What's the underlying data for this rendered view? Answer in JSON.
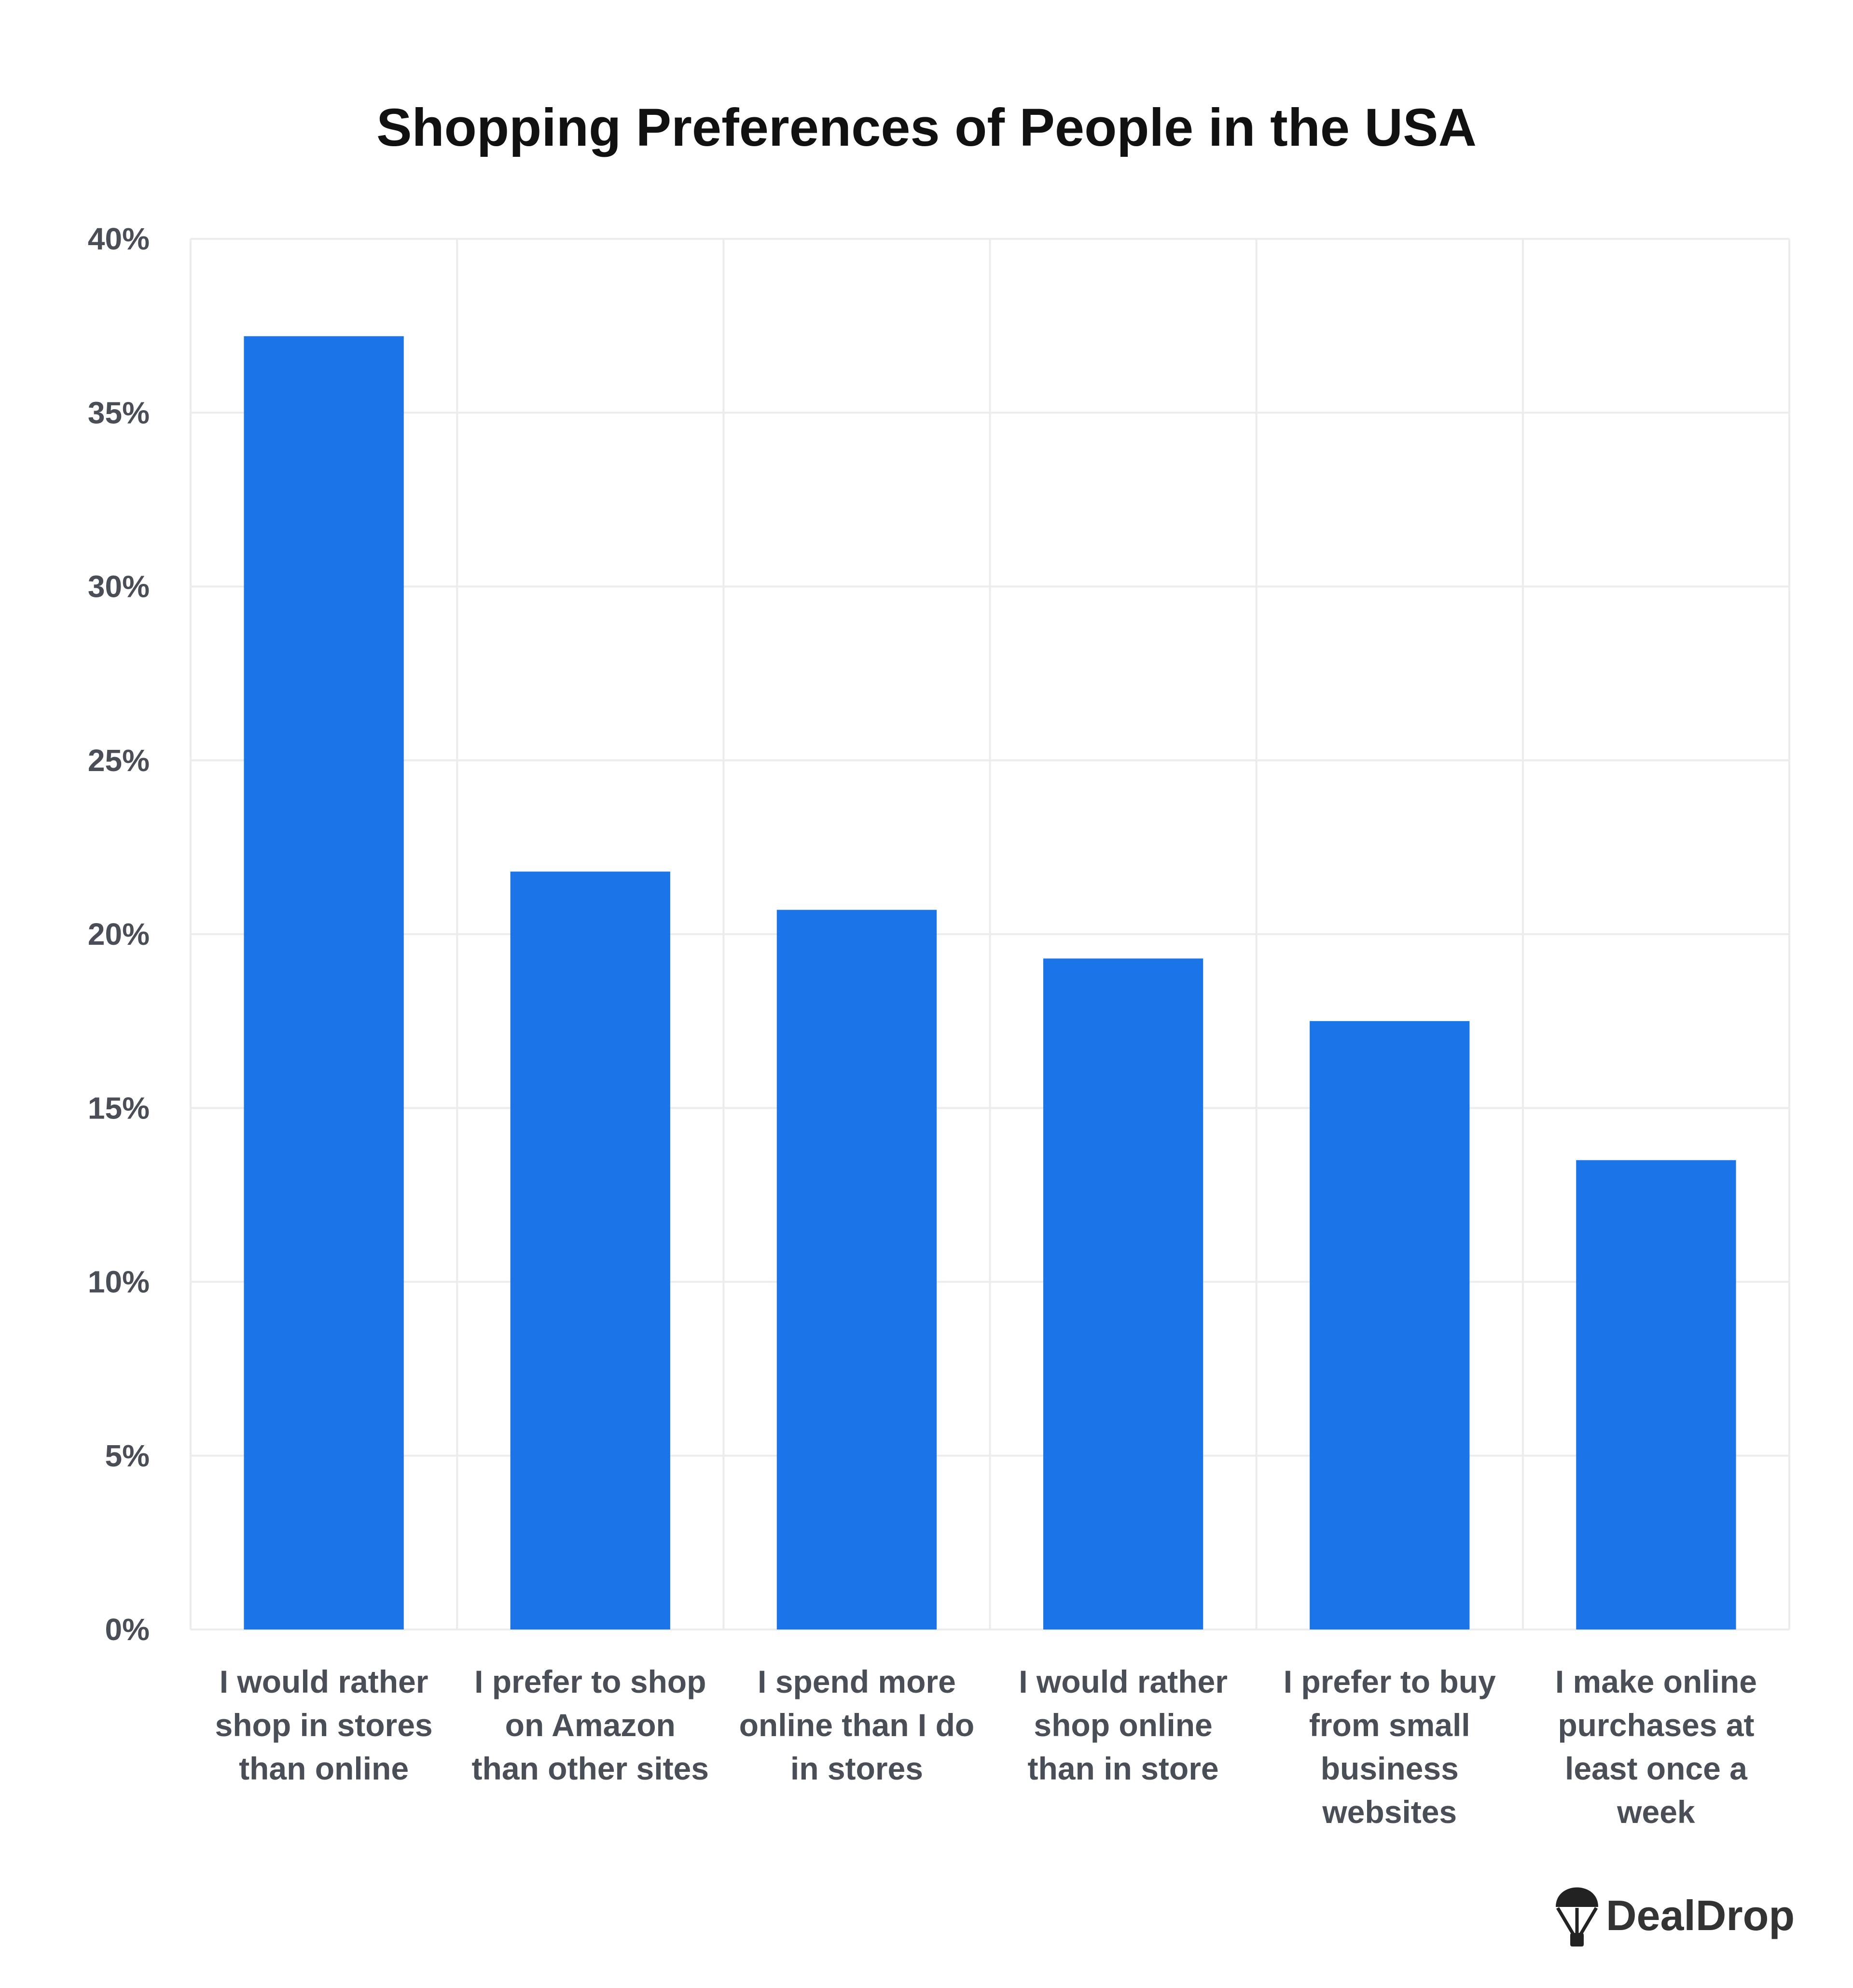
{
  "chart_data": {
    "type": "bar",
    "title": "Shopping Preferences of People in the USA",
    "categories": [
      "I would rather shop in stores than online",
      "I prefer to shop on Amazon than other sites",
      "I spend more online than I do in stores",
      "I would rather shop online than in store",
      "I prefer to buy from small business websites",
      "I make online purchases at least once a week"
    ],
    "category_lines": [
      [
        "I would rather",
        "shop in stores",
        "than online"
      ],
      [
        "I prefer to shop",
        "on Amazon",
        "than other sites"
      ],
      [
        "I spend more",
        "online than I do",
        "in stores"
      ],
      [
        "I would rather",
        "shop online",
        "than in store"
      ],
      [
        "I prefer to buy",
        "from small",
        "business",
        "websites"
      ],
      [
        "I make online",
        "purchases at",
        "least once a",
        "week"
      ]
    ],
    "values": [
      37.2,
      21.8,
      20.7,
      19.3,
      17.5,
      13.5
    ],
    "unit": "%",
    "ylim": [
      0,
      40
    ],
    "yticks": [
      0,
      5,
      10,
      15,
      20,
      25,
      30,
      35,
      40
    ],
    "ytick_labels": [
      "0%",
      "5%",
      "10%",
      "15%",
      "20%",
      "25%",
      "30%",
      "35%",
      "40%"
    ],
    "xlabel": "",
    "ylabel": "",
    "grid": true,
    "legend": "none",
    "bar_color": "#1b74e8",
    "grid_color": "#ececec"
  },
  "brand": {
    "name": "DealDrop",
    "icon": "parachute-icon"
  }
}
